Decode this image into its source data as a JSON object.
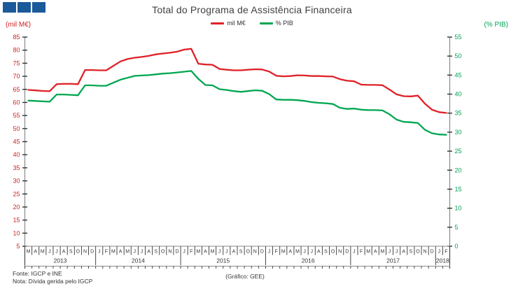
{
  "logo": {
    "squares": 3,
    "color": "#1a5a9a"
  },
  "title": "Total do Programa de Assistência Financeira",
  "legend": [
    {
      "label": "mil M€",
      "color": "#df2127"
    },
    {
      "label": "% PIB",
      "color": "#00a651"
    }
  ],
  "left_axis": {
    "unit_label": "(mil M€)",
    "color": "#d22222",
    "min": 5,
    "max": 85,
    "step": 5
  },
  "right_axis": {
    "unit_label": "(% PIB)",
    "color": "#00a354",
    "min": 0,
    "max": 55,
    "step": 5
  },
  "footer": {
    "source": "Fonte: IGCP e INE",
    "note": "Nota: Dívida gerida pelo IGCP",
    "credit": "(Gráfico: GEE)"
  },
  "chart_data": {
    "type": "line",
    "title": "Total do Programa de Assistência Financeira",
    "grid": false,
    "legend_position": "top-center",
    "left_ylim": [
      5,
      85
    ],
    "right_ylim": [
      0,
      55
    ],
    "x_months": [
      "M",
      "A",
      "M",
      "J",
      "J",
      "A",
      "S",
      "O",
      "N",
      "D",
      "J",
      "F",
      "M",
      "A",
      "M",
      "J",
      "J",
      "A",
      "S",
      "O",
      "N",
      "D",
      "J",
      "F",
      "M",
      "A",
      "M",
      "J",
      "J",
      "A",
      "S",
      "O",
      "N",
      "D",
      "J",
      "F",
      "M",
      "A",
      "M",
      "J",
      "J",
      "A",
      "S",
      "O",
      "N",
      "D",
      "J",
      "F",
      "M",
      "A",
      "M",
      "J",
      "J",
      "A",
      "S",
      "O",
      "N",
      "D",
      "J",
      "F"
    ],
    "year_groups": [
      {
        "label": "2013",
        "months": 10
      },
      {
        "label": "2014",
        "months": 12
      },
      {
        "label": "2015",
        "months": 12
      },
      {
        "label": "2016",
        "months": 12
      },
      {
        "label": "2017",
        "months": 12
      },
      {
        "label": "2018",
        "months": 2
      }
    ],
    "series": [
      {
        "name": "mil M€",
        "axis": "left",
        "color": "#df2127",
        "values": [
          64.8,
          64.6,
          64.4,
          64.3,
          67.0,
          67.1,
          67.1,
          67.0,
          72.4,
          72.4,
          72.3,
          72.3,
          74.0,
          75.7,
          76.6,
          77.1,
          77.4,
          77.8,
          78.4,
          78.7,
          79.0,
          79.4,
          80.2,
          80.5,
          74.8,
          74.5,
          74.4,
          72.8,
          72.5,
          72.3,
          72.3,
          72.5,
          72.7,
          72.6,
          71.8,
          70.2,
          70.0,
          70.1,
          70.4,
          70.3,
          70.1,
          70.1,
          70.0,
          69.9,
          68.9,
          68.3,
          68.1,
          66.8,
          66.7,
          66.7,
          66.6,
          64.9,
          63.1,
          62.4,
          62.3,
          62.6,
          59.5,
          57.2,
          56.3,
          56.0
        ]
      },
      {
        "name": "% PIB",
        "axis": "right",
        "color": "#00a651",
        "values": [
          38.3,
          38.2,
          38.1,
          38.0,
          39.9,
          39.9,
          39.8,
          39.7,
          42.3,
          42.3,
          42.2,
          42.2,
          43.0,
          43.8,
          44.3,
          44.8,
          44.9,
          45.0,
          45.2,
          45.4,
          45.5,
          45.7,
          45.9,
          46.1,
          44.0,
          42.4,
          42.3,
          41.3,
          41.1,
          40.8,
          40.6,
          40.8,
          41.0,
          40.9,
          40.0,
          38.6,
          38.5,
          38.5,
          38.4,
          38.2,
          37.9,
          37.7,
          37.6,
          37.4,
          36.4,
          36.1,
          36.2,
          35.9,
          35.8,
          35.8,
          35.7,
          34.7,
          33.3,
          32.7,
          32.6,
          32.4,
          30.6,
          29.7,
          29.4,
          29.3
        ]
      }
    ]
  }
}
